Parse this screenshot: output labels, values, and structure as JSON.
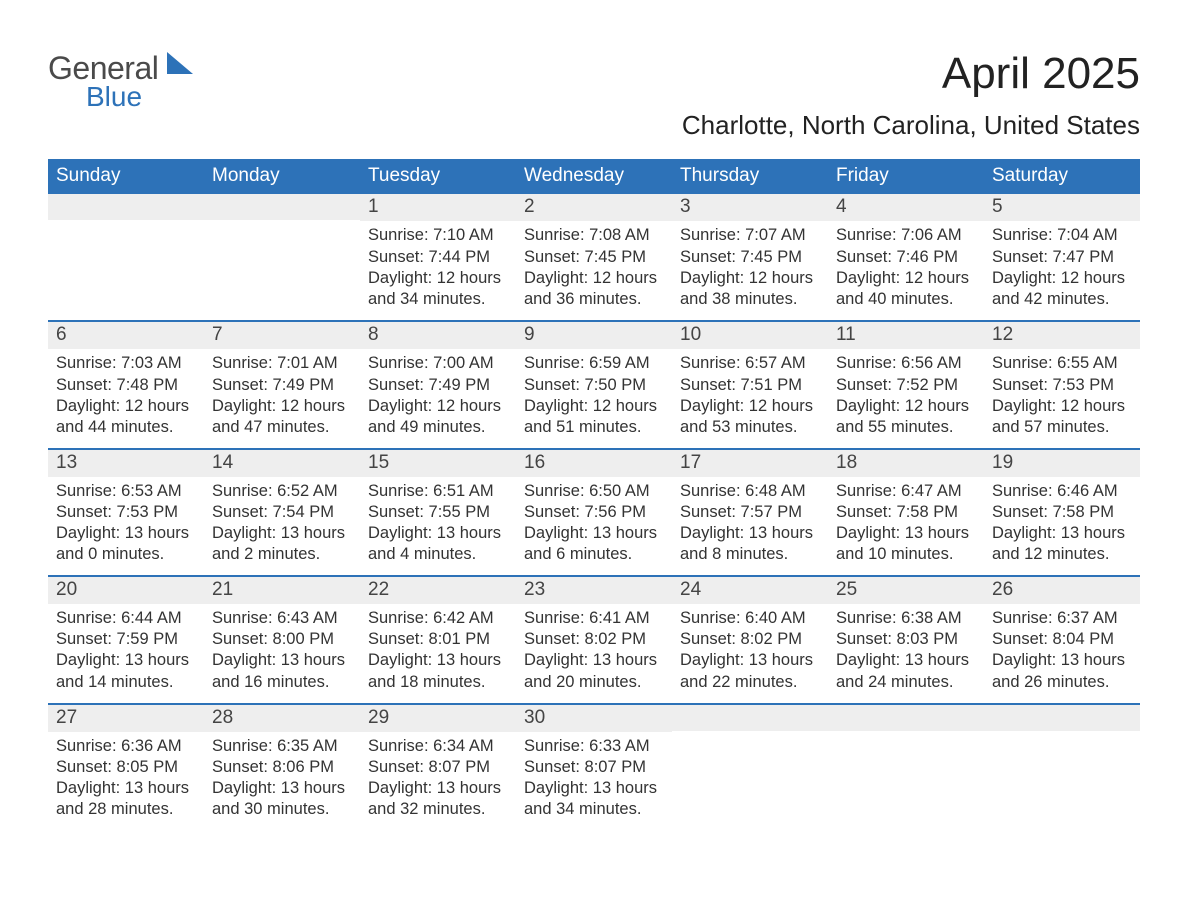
{
  "logo": {
    "word1": "General",
    "word2": "Blue"
  },
  "title": "April 2025",
  "location": "Charlotte, North Carolina, United States",
  "columns": [
    "Sunday",
    "Monday",
    "Tuesday",
    "Wednesday",
    "Thursday",
    "Friday",
    "Saturday"
  ],
  "colors": {
    "header_bg": "#2d72b8",
    "header_text": "#ffffff",
    "daynum_bg": "#eeeeee",
    "week_divider": "#2d72b8",
    "body_text": "#333333",
    "logo_gray": "#4a4a4a",
    "logo_blue": "#2d72b8",
    "page_bg": "#ffffff"
  },
  "typography": {
    "title_fontsize": 44,
    "location_fontsize": 26,
    "header_fontsize": 19,
    "daynum_fontsize": 19,
    "body_fontsize": 16.5,
    "font_family": "Arial"
  },
  "weeks": [
    [
      null,
      null,
      {
        "day": "1",
        "sunrise": "Sunrise: 7:10 AM",
        "sunset": "Sunset: 7:44 PM",
        "dl1": "Daylight: 12 hours",
        "dl2": "and 34 minutes."
      },
      {
        "day": "2",
        "sunrise": "Sunrise: 7:08 AM",
        "sunset": "Sunset: 7:45 PM",
        "dl1": "Daylight: 12 hours",
        "dl2": "and 36 minutes."
      },
      {
        "day": "3",
        "sunrise": "Sunrise: 7:07 AM",
        "sunset": "Sunset: 7:45 PM",
        "dl1": "Daylight: 12 hours",
        "dl2": "and 38 minutes."
      },
      {
        "day": "4",
        "sunrise": "Sunrise: 7:06 AM",
        "sunset": "Sunset: 7:46 PM",
        "dl1": "Daylight: 12 hours",
        "dl2": "and 40 minutes."
      },
      {
        "day": "5",
        "sunrise": "Sunrise: 7:04 AM",
        "sunset": "Sunset: 7:47 PM",
        "dl1": "Daylight: 12 hours",
        "dl2": "and 42 minutes."
      }
    ],
    [
      {
        "day": "6",
        "sunrise": "Sunrise: 7:03 AM",
        "sunset": "Sunset: 7:48 PM",
        "dl1": "Daylight: 12 hours",
        "dl2": "and 44 minutes."
      },
      {
        "day": "7",
        "sunrise": "Sunrise: 7:01 AM",
        "sunset": "Sunset: 7:49 PM",
        "dl1": "Daylight: 12 hours",
        "dl2": "and 47 minutes."
      },
      {
        "day": "8",
        "sunrise": "Sunrise: 7:00 AM",
        "sunset": "Sunset: 7:49 PM",
        "dl1": "Daylight: 12 hours",
        "dl2": "and 49 minutes."
      },
      {
        "day": "9",
        "sunrise": "Sunrise: 6:59 AM",
        "sunset": "Sunset: 7:50 PM",
        "dl1": "Daylight: 12 hours",
        "dl2": "and 51 minutes."
      },
      {
        "day": "10",
        "sunrise": "Sunrise: 6:57 AM",
        "sunset": "Sunset: 7:51 PM",
        "dl1": "Daylight: 12 hours",
        "dl2": "and 53 minutes."
      },
      {
        "day": "11",
        "sunrise": "Sunrise: 6:56 AM",
        "sunset": "Sunset: 7:52 PM",
        "dl1": "Daylight: 12 hours",
        "dl2": "and 55 minutes."
      },
      {
        "day": "12",
        "sunrise": "Sunrise: 6:55 AM",
        "sunset": "Sunset: 7:53 PM",
        "dl1": "Daylight: 12 hours",
        "dl2": "and 57 minutes."
      }
    ],
    [
      {
        "day": "13",
        "sunrise": "Sunrise: 6:53 AM",
        "sunset": "Sunset: 7:53 PM",
        "dl1": "Daylight: 13 hours",
        "dl2": "and 0 minutes."
      },
      {
        "day": "14",
        "sunrise": "Sunrise: 6:52 AM",
        "sunset": "Sunset: 7:54 PM",
        "dl1": "Daylight: 13 hours",
        "dl2": "and 2 minutes."
      },
      {
        "day": "15",
        "sunrise": "Sunrise: 6:51 AM",
        "sunset": "Sunset: 7:55 PM",
        "dl1": "Daylight: 13 hours",
        "dl2": "and 4 minutes."
      },
      {
        "day": "16",
        "sunrise": "Sunrise: 6:50 AM",
        "sunset": "Sunset: 7:56 PM",
        "dl1": "Daylight: 13 hours",
        "dl2": "and 6 minutes."
      },
      {
        "day": "17",
        "sunrise": "Sunrise: 6:48 AM",
        "sunset": "Sunset: 7:57 PM",
        "dl1": "Daylight: 13 hours",
        "dl2": "and 8 minutes."
      },
      {
        "day": "18",
        "sunrise": "Sunrise: 6:47 AM",
        "sunset": "Sunset: 7:58 PM",
        "dl1": "Daylight: 13 hours",
        "dl2": "and 10 minutes."
      },
      {
        "day": "19",
        "sunrise": "Sunrise: 6:46 AM",
        "sunset": "Sunset: 7:58 PM",
        "dl1": "Daylight: 13 hours",
        "dl2": "and 12 minutes."
      }
    ],
    [
      {
        "day": "20",
        "sunrise": "Sunrise: 6:44 AM",
        "sunset": "Sunset: 7:59 PM",
        "dl1": "Daylight: 13 hours",
        "dl2": "and 14 minutes."
      },
      {
        "day": "21",
        "sunrise": "Sunrise: 6:43 AM",
        "sunset": "Sunset: 8:00 PM",
        "dl1": "Daylight: 13 hours",
        "dl2": "and 16 minutes."
      },
      {
        "day": "22",
        "sunrise": "Sunrise: 6:42 AM",
        "sunset": "Sunset: 8:01 PM",
        "dl1": "Daylight: 13 hours",
        "dl2": "and 18 minutes."
      },
      {
        "day": "23",
        "sunrise": "Sunrise: 6:41 AM",
        "sunset": "Sunset: 8:02 PM",
        "dl1": "Daylight: 13 hours",
        "dl2": "and 20 minutes."
      },
      {
        "day": "24",
        "sunrise": "Sunrise: 6:40 AM",
        "sunset": "Sunset: 8:02 PM",
        "dl1": "Daylight: 13 hours",
        "dl2": "and 22 minutes."
      },
      {
        "day": "25",
        "sunrise": "Sunrise: 6:38 AM",
        "sunset": "Sunset: 8:03 PM",
        "dl1": "Daylight: 13 hours",
        "dl2": "and 24 minutes."
      },
      {
        "day": "26",
        "sunrise": "Sunrise: 6:37 AM",
        "sunset": "Sunset: 8:04 PM",
        "dl1": "Daylight: 13 hours",
        "dl2": "and 26 minutes."
      }
    ],
    [
      {
        "day": "27",
        "sunrise": "Sunrise: 6:36 AM",
        "sunset": "Sunset: 8:05 PM",
        "dl1": "Daylight: 13 hours",
        "dl2": "and 28 minutes."
      },
      {
        "day": "28",
        "sunrise": "Sunrise: 6:35 AM",
        "sunset": "Sunset: 8:06 PM",
        "dl1": "Daylight: 13 hours",
        "dl2": "and 30 minutes."
      },
      {
        "day": "29",
        "sunrise": "Sunrise: 6:34 AM",
        "sunset": "Sunset: 8:07 PM",
        "dl1": "Daylight: 13 hours",
        "dl2": "and 32 minutes."
      },
      {
        "day": "30",
        "sunrise": "Sunrise: 6:33 AM",
        "sunset": "Sunset: 8:07 PM",
        "dl1": "Daylight: 13 hours",
        "dl2": "and 34 minutes."
      },
      null,
      null,
      null
    ]
  ]
}
